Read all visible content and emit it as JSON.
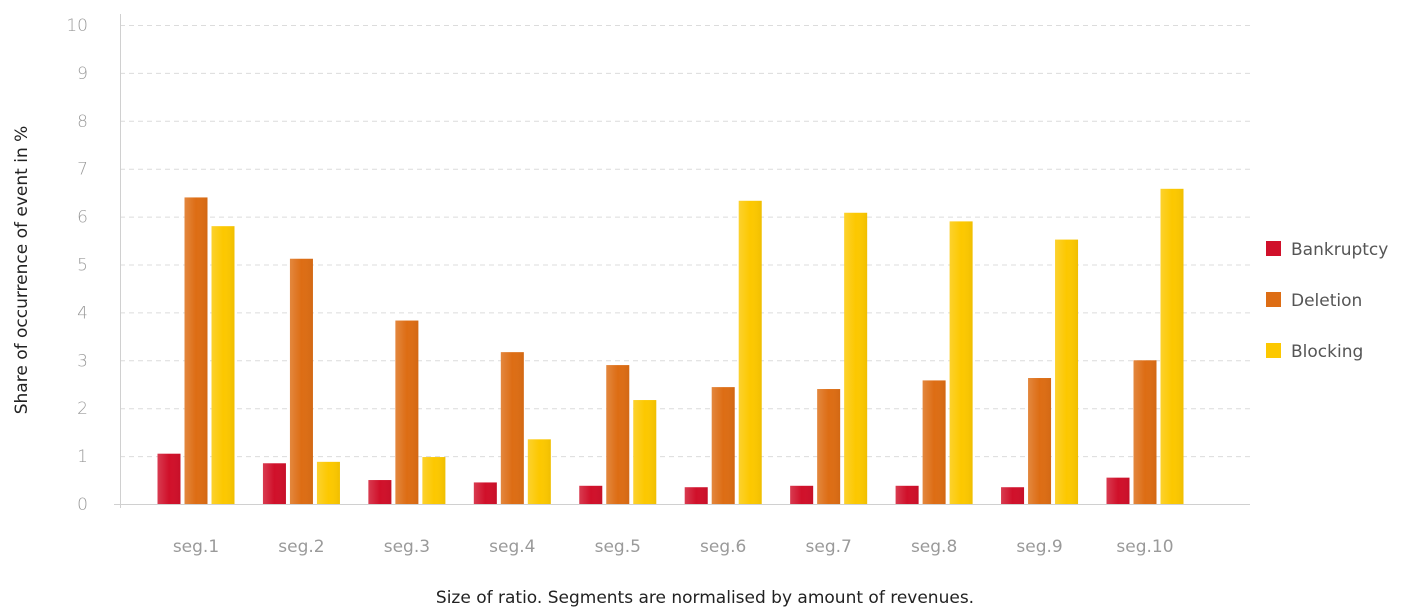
{
  "chart_data": {
    "type": "bar",
    "categories": [
      "seg.1",
      "seg.2",
      "seg.3",
      "seg.4",
      "seg.5",
      "seg.6",
      "seg.7",
      "seg.8",
      "seg.9",
      "seg.10"
    ],
    "series": [
      {
        "name": "Bankruptcy",
        "color": "#d0102a",
        "values": [
          1.05,
          0.85,
          0.5,
          0.45,
          0.38,
          0.35,
          0.38,
          0.38,
          0.35,
          0.55
        ]
      },
      {
        "name": "Deletion",
        "color": "#dd6d14",
        "values": [
          6.4,
          5.12,
          3.83,
          3.17,
          2.9,
          2.44,
          2.4,
          2.58,
          2.63,
          3.0
        ]
      },
      {
        "name": "Blocking",
        "color": "#fcc800",
        "values": [
          5.8,
          0.88,
          0.98,
          1.35,
          2.17,
          6.33,
          6.08,
          5.9,
          5.52,
          6.58
        ]
      }
    ],
    "title": "",
    "xlabel": "Size of ratio. Segments are normalised by amount of revenues.",
    "ylabel": "Share of occurrence of event in %",
    "ylim": [
      0,
      10
    ],
    "yticks": [
      0,
      1,
      2,
      3,
      4,
      5,
      6,
      7,
      8,
      9,
      10
    ],
    "grid": true,
    "legend_position": "right"
  }
}
